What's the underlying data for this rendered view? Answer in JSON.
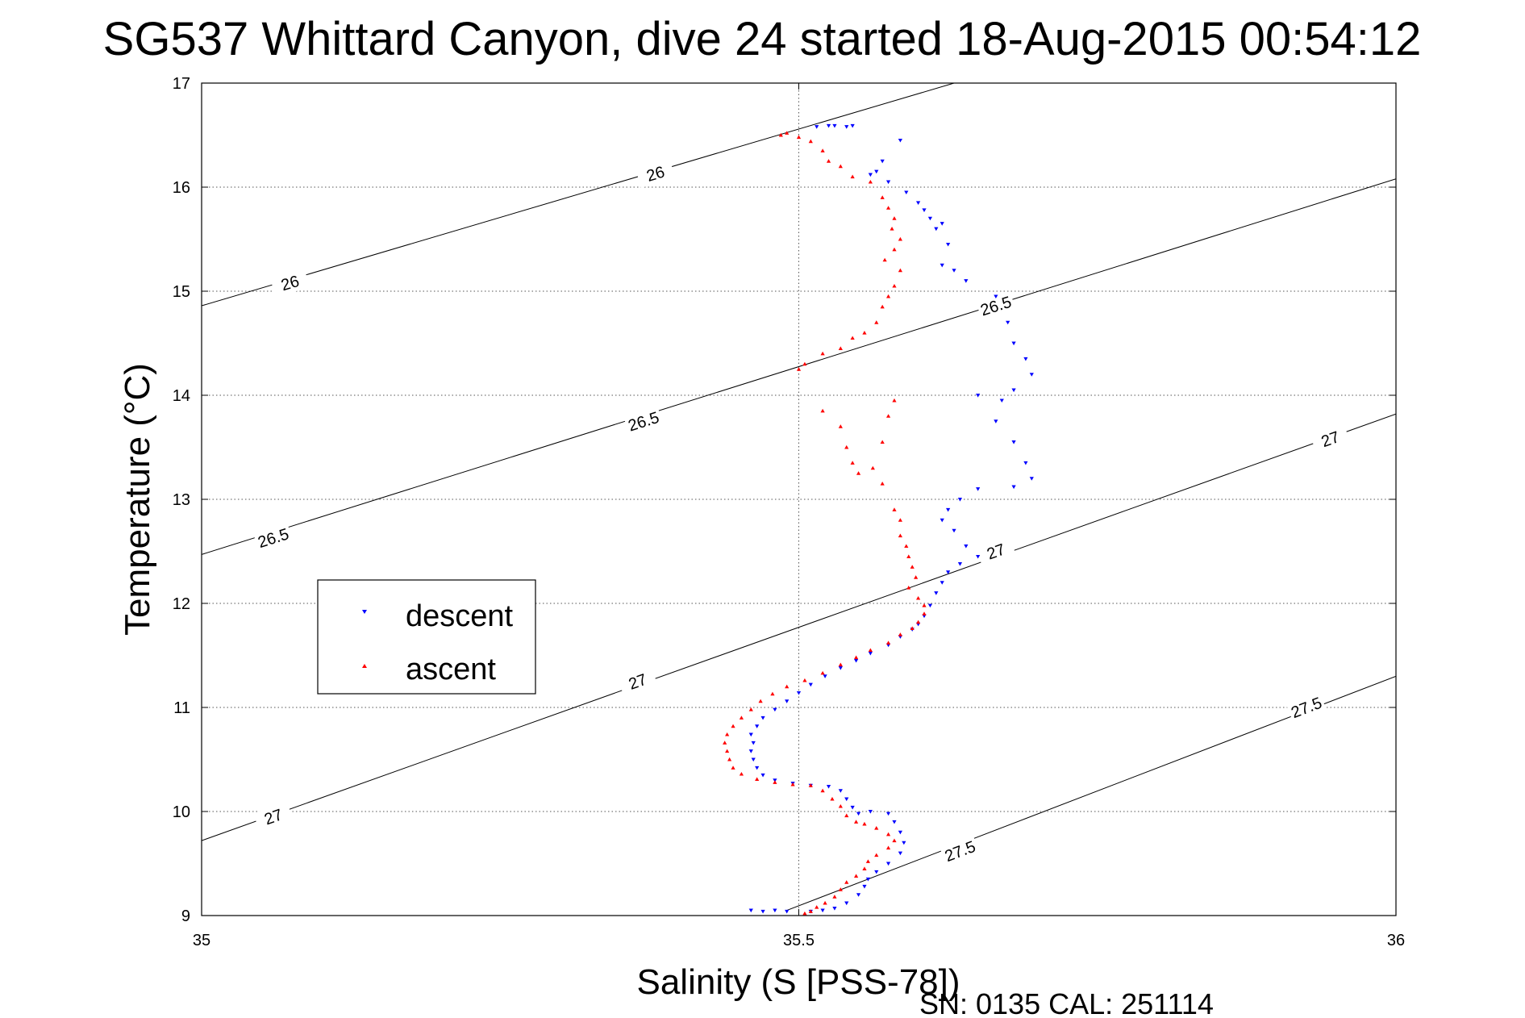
{
  "chart_data": {
    "type": "scatter",
    "title": "SG537 Whittard Canyon, dive 24 started 18-Aug-2015 00:54:12",
    "xlabel": "Salinity (S [PSS-78])",
    "ylabel": "Temperature (°C)",
    "xlim": [
      35,
      36
    ],
    "ylim": [
      9,
      17
    ],
    "x_ticks": [
      35,
      35.5,
      36
    ],
    "y_ticks": [
      9,
      10,
      11,
      12,
      13,
      14,
      15,
      16,
      17
    ],
    "x_tick_labels": [
      "35",
      "35.5",
      "36"
    ],
    "y_tick_labels": [
      "9",
      "10",
      "11",
      "12",
      "13",
      "14",
      "15",
      "16",
      "17"
    ],
    "grid": true,
    "legend_position": "left-middle",
    "footnote": "SN: 0135  CAL: 251114",
    "density_contours": [
      {
        "level": "26",
        "points": [
          [
            35,
            14.86
          ],
          [
            35.63,
            17
          ]
        ],
        "labels": [
          [
            35.074,
            15.08
          ],
          [
            35.38,
            16.13
          ]
        ]
      },
      {
        "level": "26.5",
        "points": [
          [
            35,
            12.47
          ],
          [
            36,
            16.08
          ]
        ],
        "labels": [
          [
            35.06,
            12.63
          ],
          [
            35.37,
            13.75
          ],
          [
            35.665,
            14.86
          ]
        ]
      },
      {
        "level": "27",
        "points": [
          [
            35,
            9.72
          ],
          [
            36,
            13.82
          ]
        ],
        "labels": [
          [
            35.06,
            9.95
          ],
          [
            35.365,
            11.25
          ],
          [
            35.665,
            12.5
          ],
          [
            35.945,
            13.58
          ]
        ]
      },
      {
        "level": "27.5",
        "points": [
          [
            35.49,
            9.05
          ],
          [
            36,
            11.3
          ]
        ],
        "labels": [
          [
            35.635,
            9.62
          ],
          [
            35.925,
            11.0
          ]
        ]
      }
    ],
    "series": [
      {
        "name": "descent",
        "color": "#0000ff",
        "marker": "triangle-down",
        "points": [
          [
            35.515,
            16.58
          ],
          [
            35.525,
            16.59
          ],
          [
            35.53,
            16.59
          ],
          [
            35.54,
            16.58
          ],
          [
            35.545,
            16.59
          ],
          [
            35.585,
            16.45
          ],
          [
            35.56,
            16.12
          ],
          [
            35.565,
            16.15
          ],
          [
            35.57,
            16.25
          ],
          [
            35.575,
            16.05
          ],
          [
            35.59,
            15.95
          ],
          [
            35.6,
            15.85
          ],
          [
            35.605,
            15.78
          ],
          [
            35.61,
            15.7
          ],
          [
            35.615,
            15.6
          ],
          [
            35.62,
            15.65
          ],
          [
            35.625,
            15.45
          ],
          [
            35.62,
            15.25
          ],
          [
            35.63,
            15.2
          ],
          [
            35.64,
            15.1
          ],
          [
            35.665,
            14.95
          ],
          [
            35.675,
            14.7
          ],
          [
            35.68,
            14.5
          ],
          [
            35.69,
            14.35
          ],
          [
            35.695,
            14.2
          ],
          [
            35.68,
            14.05
          ],
          [
            35.67,
            13.95
          ],
          [
            35.65,
            14.0
          ],
          [
            35.665,
            13.75
          ],
          [
            35.68,
            13.55
          ],
          [
            35.69,
            13.35
          ],
          [
            35.695,
            13.2
          ],
          [
            35.68,
            13.12
          ],
          [
            35.65,
            13.1
          ],
          [
            35.635,
            13.0
          ],
          [
            35.625,
            12.9
          ],
          [
            35.62,
            12.8
          ],
          [
            35.63,
            12.7
          ],
          [
            35.64,
            12.55
          ],
          [
            35.65,
            12.45
          ],
          [
            35.635,
            12.38
          ],
          [
            35.625,
            12.3
          ],
          [
            35.62,
            12.2
          ],
          [
            35.615,
            12.1
          ],
          [
            35.61,
            11.98
          ],
          [
            35.605,
            11.88
          ],
          [
            35.6,
            11.8
          ],
          [
            35.595,
            11.75
          ],
          [
            35.585,
            11.68
          ],
          [
            35.575,
            11.6
          ],
          [
            35.56,
            11.52
          ],
          [
            35.548,
            11.45
          ],
          [
            35.535,
            11.38
          ],
          [
            35.522,
            11.3
          ],
          [
            35.51,
            11.22
          ],
          [
            35.5,
            11.14
          ],
          [
            35.49,
            11.06
          ],
          [
            35.48,
            10.98
          ],
          [
            35.47,
            10.9
          ],
          [
            35.465,
            10.82
          ],
          [
            35.46,
            10.74
          ],
          [
            35.462,
            10.66
          ],
          [
            35.46,
            10.58
          ],
          [
            35.462,
            10.5
          ],
          [
            35.465,
            10.42
          ],
          [
            35.47,
            10.35
          ],
          [
            35.48,
            10.3
          ],
          [
            35.495,
            10.27
          ],
          [
            35.51,
            10.25
          ],
          [
            35.525,
            10.24
          ],
          [
            35.535,
            10.2
          ],
          [
            35.54,
            10.12
          ],
          [
            35.545,
            10.04
          ],
          [
            35.55,
            9.98
          ],
          [
            35.56,
            10.0
          ],
          [
            35.575,
            9.98
          ],
          [
            35.58,
            9.9
          ],
          [
            35.585,
            9.8
          ],
          [
            35.588,
            9.7
          ],
          [
            35.585,
            9.6
          ],
          [
            35.575,
            9.5
          ],
          [
            35.565,
            9.42
          ],
          [
            35.558,
            9.35
          ],
          [
            35.555,
            9.28
          ],
          [
            35.55,
            9.2
          ],
          [
            35.54,
            9.12
          ],
          [
            35.53,
            9.07
          ],
          [
            35.52,
            9.05
          ],
          [
            35.51,
            9.04
          ],
          [
            35.49,
            9.04
          ],
          [
            35.48,
            9.05
          ],
          [
            35.47,
            9.04
          ],
          [
            35.46,
            9.05
          ]
        ]
      },
      {
        "name": "ascent",
        "color": "#ff0000",
        "marker": "triangle-up",
        "points": [
          [
            35.485,
            16.5
          ],
          [
            35.49,
            16.52
          ],
          [
            35.5,
            16.48
          ],
          [
            35.51,
            16.44
          ],
          [
            35.52,
            16.35
          ],
          [
            35.525,
            16.25
          ],
          [
            35.535,
            16.2
          ],
          [
            35.545,
            16.1
          ],
          [
            35.56,
            16.05
          ],
          [
            35.57,
            15.9
          ],
          [
            35.575,
            15.8
          ],
          [
            35.58,
            15.7
          ],
          [
            35.578,
            15.6
          ],
          [
            35.585,
            15.5
          ],
          [
            35.58,
            15.4
          ],
          [
            35.572,
            15.3
          ],
          [
            35.585,
            15.2
          ],
          [
            35.58,
            15.05
          ],
          [
            35.575,
            14.95
          ],
          [
            35.57,
            14.85
          ],
          [
            35.565,
            14.7
          ],
          [
            35.555,
            14.6
          ],
          [
            35.545,
            14.55
          ],
          [
            35.535,
            14.45
          ],
          [
            35.52,
            14.4
          ],
          [
            35.505,
            14.3
          ],
          [
            35.5,
            14.25
          ],
          [
            35.52,
            13.85
          ],
          [
            35.535,
            13.7
          ],
          [
            35.54,
            13.5
          ],
          [
            35.545,
            13.35
          ],
          [
            35.55,
            13.25
          ],
          [
            35.562,
            13.3
          ],
          [
            35.57,
            13.55
          ],
          [
            35.575,
            13.8
          ],
          [
            35.58,
            13.95
          ],
          [
            35.57,
            13.15
          ],
          [
            35.58,
            12.9
          ],
          [
            35.585,
            12.8
          ],
          [
            35.585,
            12.65
          ],
          [
            35.59,
            12.55
          ],
          [
            35.592,
            12.45
          ],
          [
            35.595,
            12.35
          ],
          [
            35.598,
            12.25
          ],
          [
            35.592,
            12.15
          ],
          [
            35.6,
            12.05
          ],
          [
            35.605,
            11.98
          ],
          [
            35.605,
            11.9
          ],
          [
            35.6,
            11.82
          ],
          [
            35.595,
            11.76
          ],
          [
            35.585,
            11.7
          ],
          [
            35.575,
            11.62
          ],
          [
            35.56,
            11.55
          ],
          [
            35.548,
            11.48
          ],
          [
            35.535,
            11.41
          ],
          [
            35.52,
            11.33
          ],
          [
            35.505,
            11.26
          ],
          [
            35.49,
            11.2
          ],
          [
            35.478,
            11.13
          ],
          [
            35.468,
            11.06
          ],
          [
            35.46,
            10.98
          ],
          [
            35.452,
            10.9
          ],
          [
            35.445,
            10.82
          ],
          [
            35.44,
            10.74
          ],
          [
            35.438,
            10.66
          ],
          [
            35.44,
            10.58
          ],
          [
            35.442,
            10.5
          ],
          [
            35.445,
            10.42
          ],
          [
            35.452,
            10.36
          ],
          [
            35.465,
            10.31
          ],
          [
            35.48,
            10.28
          ],
          [
            35.495,
            10.26
          ],
          [
            35.51,
            10.25
          ],
          [
            35.52,
            10.2
          ],
          [
            35.528,
            10.12
          ],
          [
            35.535,
            10.05
          ],
          [
            35.54,
            9.96
          ],
          [
            35.548,
            9.9
          ],
          [
            35.555,
            9.88
          ],
          [
            35.565,
            9.84
          ],
          [
            35.575,
            9.78
          ],
          [
            35.58,
            9.72
          ],
          [
            35.575,
            9.65
          ],
          [
            35.565,
            9.58
          ],
          [
            35.558,
            9.52
          ],
          [
            35.555,
            9.45
          ],
          [
            35.548,
            9.38
          ],
          [
            35.54,
            9.32
          ],
          [
            35.535,
            9.25
          ],
          [
            35.53,
            9.18
          ],
          [
            35.522,
            9.12
          ],
          [
            35.515,
            9.08
          ],
          [
            35.51,
            9.04
          ],
          [
            35.505,
            9.02
          ]
        ]
      }
    ]
  }
}
